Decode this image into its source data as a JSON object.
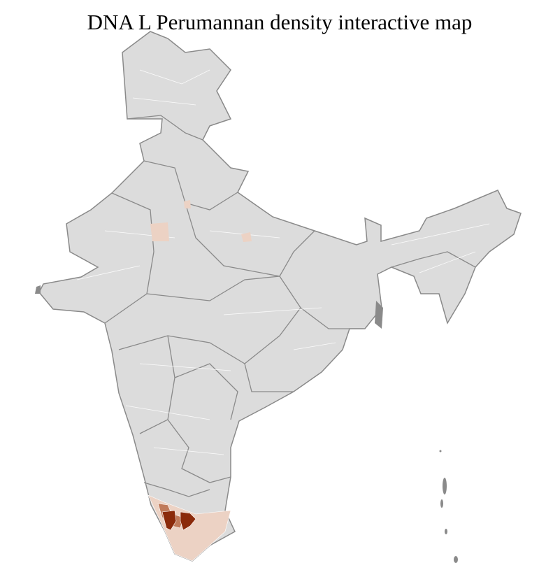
{
  "title": "DNA L Perumannan density interactive map",
  "colors": {
    "base": "#dcdcdc",
    "district_border": "#ffffff",
    "state_border": "#8a8a8a",
    "low": "#ecd2c4",
    "medium": "#c07a5a",
    "high": "#8b2a0a"
  }
}
